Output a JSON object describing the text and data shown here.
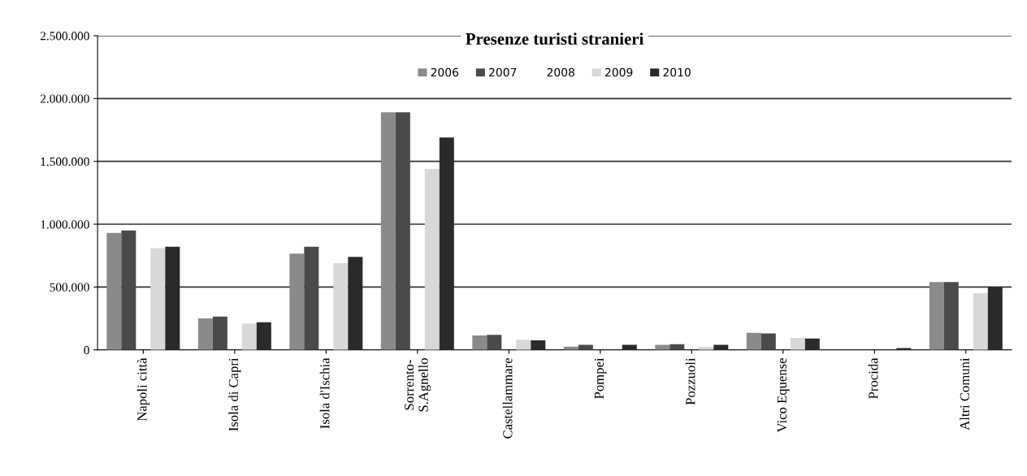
{
  "chart_data": {
    "type": "bar",
    "title": "Presenze turisti stranieri",
    "categories": [
      "Napoli città",
      "Isola di Capri",
      "Isola d'Ischia",
      "Sorrento-\nS.Agnello",
      "Castellammare",
      "Pompei",
      "Pozzuoli",
      "Vico Equense",
      "Procida",
      "Altri Comuni"
    ],
    "series": [
      {
        "name": "2006",
        "color": "#8a8a8a",
        "values": [
          930000,
          250000,
          765000,
          1890000,
          115000,
          25000,
          40000,
          135000,
          0,
          540000
        ]
      },
      {
        "name": "2007",
        "color": "#4a4a4a",
        "values": [
          950000,
          265000,
          820000,
          1890000,
          120000,
          40000,
          45000,
          130000,
          0,
          540000
        ]
      },
      {
        "name": "2008",
        "values": [
          null,
          null,
          null,
          null,
          null,
          null,
          null,
          null,
          null,
          null
        ]
      },
      {
        "name": "2009",
        "color": "#d8d8d8",
        "values": [
          810000,
          210000,
          690000,
          1440000,
          80000,
          null,
          25000,
          95000,
          null,
          450000
        ]
      },
      {
        "name": "2010",
        "color": "#2a2a2a",
        "values": [
          820000,
          220000,
          740000,
          1690000,
          75000,
          40000,
          40000,
          90000,
          15000,
          500000
        ]
      }
    ],
    "ylim": [
      0,
      2500000
    ],
    "yticks": [
      0,
      {
        "value": 500000,
        "label": "500.000"
      },
      {
        "value": 1000000,
        "label": "1.000.000"
      },
      {
        "value": 1500000,
        "label": "1.500.000"
      },
      {
        "value": 2000000,
        "label": "2.000.000"
      },
      {
        "value": 2500000,
        "label": "2.500.000"
      }
    ],
    "grid": "y",
    "legend": "top"
  }
}
